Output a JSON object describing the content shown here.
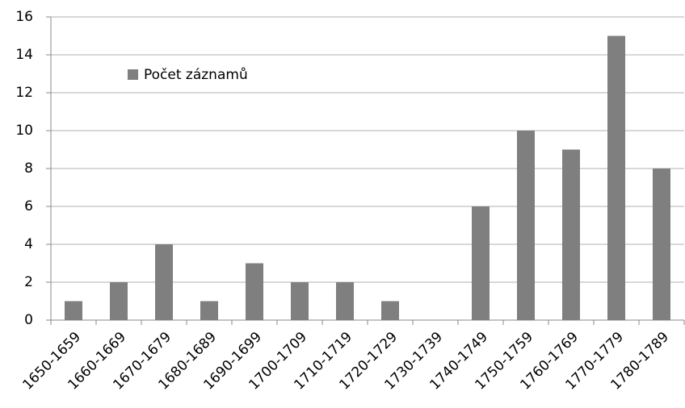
{
  "chart_data": {
    "type": "bar",
    "categories": [
      "1650-1659",
      "1660-1669",
      "1670-1679",
      "1680-1689",
      "1690-1699",
      "1700-1709",
      "1710-1719",
      "1720-1729",
      "1730-1739",
      "1740-1749",
      "1750-1759",
      "1760-1769",
      "1770-1779",
      "1780-1789"
    ],
    "series": [
      {
        "name": "Počet záznamů",
        "color": "#7f7f7f",
        "values": [
          1,
          2,
          4,
          1,
          3,
          2,
          2,
          1,
          0,
          6,
          10,
          9,
          15,
          8
        ]
      }
    ],
    "ylim": [
      0,
      16
    ],
    "yticks": [
      0,
      2,
      4,
      6,
      8,
      10,
      12,
      14,
      16
    ],
    "grid": true,
    "legend": "top-left"
  }
}
